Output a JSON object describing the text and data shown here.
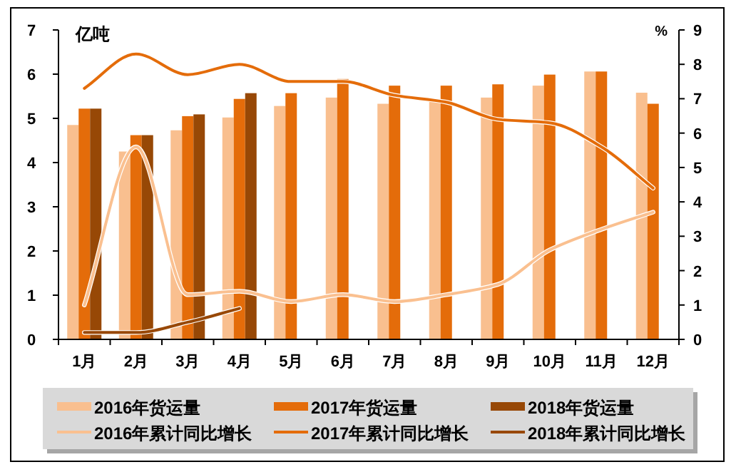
{
  "chart_data": {
    "type": "bar",
    "categories": [
      "1月",
      "2月",
      "3月",
      "4月",
      "5月",
      "6月",
      "7月",
      "8月",
      "9月",
      "10月",
      "11月",
      "12月"
    ],
    "ylabel": "亿吨",
    "y2label": "%",
    "ylim": [
      0,
      7
    ],
    "yticks": [
      0,
      1,
      2,
      3,
      4,
      5,
      6,
      7
    ],
    "y2lim": [
      0,
      9
    ],
    "y2ticks": [
      0,
      1,
      2,
      3,
      4,
      5,
      6,
      7,
      8,
      9
    ],
    "legend": "bottom",
    "grid": false,
    "series": [
      {
        "name": "2016年货运量",
        "color": "#f9bf8f",
        "values": [
          4.85,
          4.25,
          4.73,
          5.02,
          5.28,
          5.47,
          5.33,
          5.38,
          5.47,
          5.74,
          6.06,
          5.58
        ]
      },
      {
        "name": "2017年货运量",
        "color": "#e46c0a",
        "values": [
          5.22,
          4.62,
          5.05,
          5.44,
          5.57,
          5.89,
          5.74,
          5.74,
          5.77,
          5.99,
          6.06,
          5.33
        ]
      },
      {
        "name": "2018年货运量",
        "color": "#974806",
        "values": [
          5.22,
          4.62,
          5.09,
          5.57,
          null,
          null,
          null,
          null,
          null,
          null,
          null,
          null
        ]
      },
      {
        "name": "2016年累计同比增长",
        "type": "line",
        "axis": "y2",
        "color": "#fac090",
        "values": [
          1.0,
          5.6,
          1.3,
          1.4,
          1.1,
          1.3,
          1.1,
          1.3,
          1.6,
          2.6,
          3.2,
          3.7
        ]
      },
      {
        "name": "2017年累计同比增长",
        "type": "line",
        "axis": "y2",
        "color": "#e46c0a",
        "values": [
          7.3,
          8.3,
          7.7,
          8.0,
          7.5,
          7.5,
          7.1,
          6.9,
          6.4,
          6.3,
          5.6,
          4.4
        ]
      },
      {
        "name": "2018年累计同比增长",
        "type": "line",
        "axis": "y2",
        "color": "#984807",
        "values": [
          0.2,
          0.2,
          0.5,
          0.9,
          null,
          null,
          null,
          null,
          null,
          null,
          null,
          null
        ]
      }
    ]
  }
}
